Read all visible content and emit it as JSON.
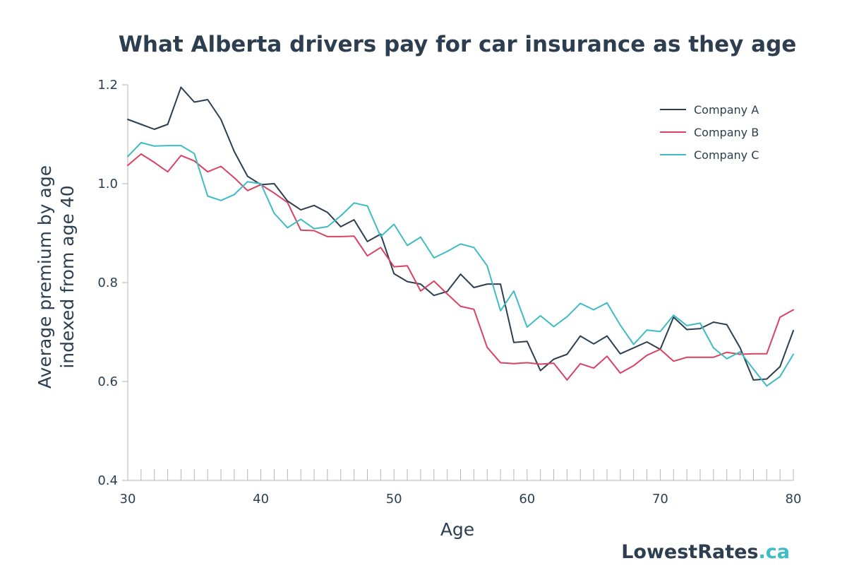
{
  "chart_data": {
    "type": "line",
    "title": "What Alberta drivers pay for car insurance as they age",
    "xlabel": "Age",
    "ylabel_lines": [
      "Average premium by age",
      "indexed from age 40"
    ],
    "xlim": [
      30,
      80
    ],
    "ylim": [
      0.4,
      1.2
    ],
    "x_ticks": [
      "30",
      "40",
      "50",
      "60",
      "70",
      "80"
    ],
    "y_ticks": [
      "0.4",
      "0.6",
      "0.8",
      "1.0",
      "1.2"
    ],
    "legend_position": "top-right",
    "x": [
      30,
      31,
      32,
      33,
      34,
      35,
      36,
      37,
      38,
      39,
      40,
      41,
      42,
      43,
      44,
      45,
      46,
      47,
      48,
      49,
      50,
      51,
      52,
      53,
      54,
      55,
      56,
      57,
      58,
      59,
      60,
      61,
      62,
      63,
      64,
      65,
      66,
      67,
      68,
      69,
      70,
      71,
      72,
      73,
      74,
      75,
      76,
      77,
      78,
      79,
      80
    ],
    "series": [
      {
        "name": "Company A",
        "color": "#2c3e50",
        "values": [
          1.13,
          1.12,
          1.11,
          1.12,
          1.195,
          1.165,
          1.17,
          1.13,
          1.065,
          1.015,
          0.998,
          1.0,
          0.965,
          0.947,
          0.956,
          0.942,
          0.913,
          0.927,
          0.883,
          0.898,
          0.818,
          0.802,
          0.797,
          0.774,
          0.782,
          0.817,
          0.79,
          0.797,
          0.797,
          0.679,
          0.681,
          0.622,
          0.645,
          0.655,
          0.692,
          0.676,
          0.692,
          0.656,
          0.668,
          0.68,
          0.665,
          0.73,
          0.705,
          0.707,
          0.72,
          0.715,
          0.668,
          0.603,
          0.605,
          0.63,
          0.703
        ]
      },
      {
        "name": "Company B",
        "color": "#d94263",
        "values": [
          1.037,
          1.06,
          1.043,
          1.024,
          1.057,
          1.046,
          1.024,
          1.035,
          1.012,
          0.986,
          0.998,
          0.981,
          0.962,
          0.906,
          0.905,
          0.893,
          0.893,
          0.894,
          0.854,
          0.871,
          0.832,
          0.834,
          0.783,
          0.803,
          0.777,
          0.752,
          0.746,
          0.669,
          0.638,
          0.636,
          0.638,
          0.635,
          0.637,
          0.603,
          0.636,
          0.627,
          0.651,
          0.617,
          0.632,
          0.653,
          0.665,
          0.641,
          0.649,
          0.649,
          0.649,
          0.659,
          0.655,
          0.656,
          0.656,
          0.73,
          0.745
        ]
      },
      {
        "name": "Company C",
        "color": "#3dbcc4",
        "values": [
          1.055,
          1.083,
          1.076,
          1.077,
          1.077,
          1.061,
          0.975,
          0.966,
          0.978,
          1.004,
          1.0,
          0.94,
          0.911,
          0.928,
          0.909,
          0.913,
          0.935,
          0.961,
          0.955,
          0.893,
          0.918,
          0.875,
          0.892,
          0.85,
          0.863,
          0.878,
          0.871,
          0.834,
          0.743,
          0.783,
          0.71,
          0.733,
          0.711,
          0.731,
          0.758,
          0.745,
          0.759,
          0.714,
          0.675,
          0.704,
          0.701,
          0.734,
          0.713,
          0.718,
          0.668,
          0.646,
          0.66,
          0.625,
          0.591,
          0.61,
          0.655
        ]
      }
    ]
  },
  "brand": {
    "name": "LowestRates",
    "suffix": ".ca",
    "color_main": "#2c3e50",
    "color_suffix": "#3dbcc4"
  },
  "colors": {
    "axis": "#b5b5b5",
    "text": "#2c3e50"
  }
}
